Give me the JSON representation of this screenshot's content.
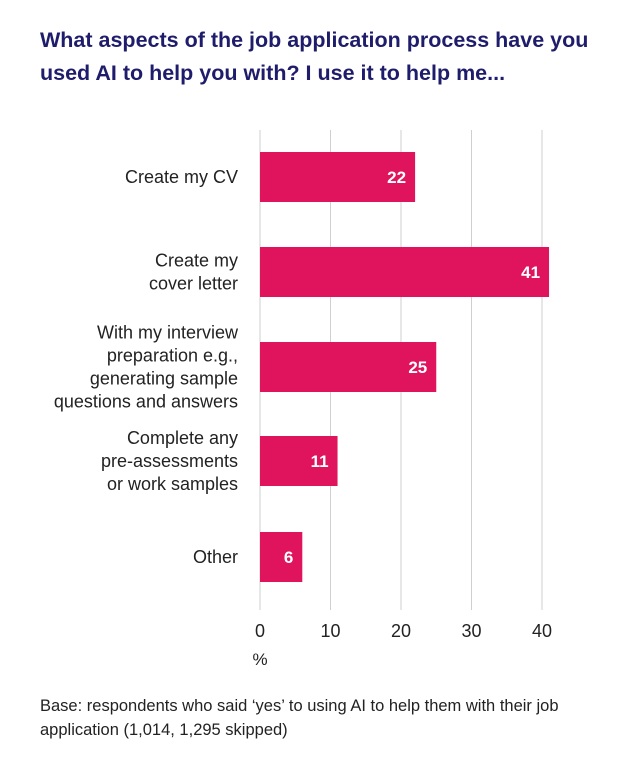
{
  "chart_data": {
    "type": "bar",
    "orientation": "horizontal",
    "title": "What aspects of the job application process have you used AI to help you with? I use it to help me...",
    "categories": [
      [
        "Create my CV"
      ],
      [
        "Create my",
        "cover letter"
      ],
      [
        "With my interview",
        "preparation e.g.,",
        "generating sample",
        "questions and answers"
      ],
      [
        "Complete any",
        "pre-assessments",
        "or work samples"
      ],
      [
        "Other"
      ]
    ],
    "values": [
      22,
      41,
      25,
      11,
      6
    ],
    "data_labels": [
      "22",
      "41",
      "25",
      "11",
      "6"
    ],
    "x_ticks": [
      0,
      10,
      20,
      30,
      40
    ],
    "x_tick_labels": [
      "0",
      "10",
      "20",
      "30",
      "40"
    ],
    "xlabel": "%",
    "ylabel": "",
    "xlim": [
      0,
      42.5
    ],
    "grid": "vertical",
    "legend": "none",
    "bar_color": "#e0145c",
    "title_color": "#1f1d6b",
    "footnote": "Base: respondents who said ‘yes’ to using AI to help them with their job application (1,014, 1,295 skipped)"
  }
}
